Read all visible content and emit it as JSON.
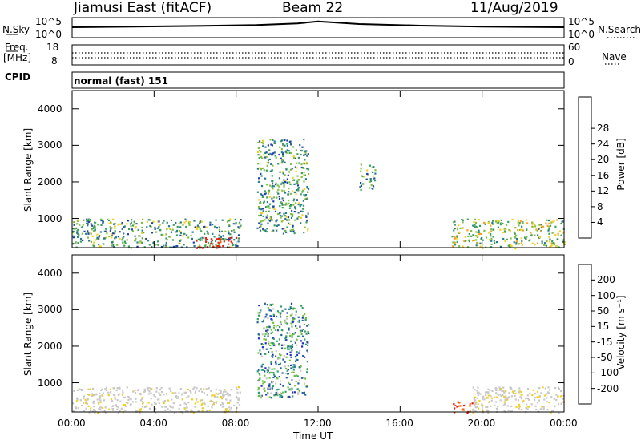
{
  "header": {
    "station": "Jiamusi East (fitACF)",
    "beam": "Beam 22",
    "date": "11/Aug/2019"
  },
  "strips": {
    "nsky_label": "N.Sky",
    "nsky_ticks": [
      "10^5",
      "10^0"
    ],
    "nsearch_label": "N.Search",
    "nsearch_ticks": [
      "10^5",
      "10^0"
    ],
    "freq_label_1": "Freq.",
    "freq_label_2": "[MHz]",
    "freq_ticks": [
      "18",
      "8"
    ],
    "nave_label": "Nave",
    "nave_ticks": [
      "60",
      "0"
    ],
    "cpid_label": "CPID",
    "cpid_value": "normal (fast) 151"
  },
  "axes": {
    "ylabel": "Slant Range [km]",
    "xlabel": "Time UT",
    "y_ticks": [
      "1000",
      "2000",
      "3000",
      "4000"
    ],
    "x_ticks": [
      "00:00",
      "04:00",
      "08:00",
      "12:00",
      "16:00",
      "20:00",
      "00:00"
    ]
  },
  "colorbars": {
    "power": {
      "label": "Power [dB]",
      "ticks": [
        "4",
        "8",
        "12",
        "16",
        "20",
        "24",
        "28"
      ],
      "colors": [
        "#1f1fff",
        "#2040a8",
        "#2a7a8a",
        "#3aa060",
        "#80c040",
        "#f0d020",
        "#f8a020",
        "#f86010",
        "#e82010"
      ]
    },
    "velocity": {
      "label": "Velocity [m s⁻¹]",
      "ticks": [
        "200",
        "100",
        "50",
        "15",
        "-15",
        "-50",
        "-100",
        "-200"
      ],
      "colors": [
        "#2030c0",
        "#2060a0",
        "#30a070",
        "#70c040",
        "#c8c8c8",
        "#f0d020",
        "#f8a020",
        "#f86010",
        "#e81010"
      ]
    }
  },
  "chart_data": [
    {
      "type": "line",
      "title": "N.Sky / N.Search",
      "x_range_hours": [
        0,
        24
      ],
      "ylim": [
        "10^0",
        "10^5"
      ],
      "series": [
        {
          "name": "N.Sky",
          "x": [
            0,
            3,
            6,
            9,
            11,
            12,
            14,
            17,
            20,
            24
          ],
          "values": [
            2.5,
            2.7,
            2.9,
            3.2,
            3.7,
            4.3,
            3.5,
            3.0,
            2.7,
            2.5
          ]
        }
      ]
    },
    {
      "type": "heatmap",
      "title": "Power [dB]",
      "xlabel": "Time UT",
      "ylabel": "Slant Range [km]",
      "x_range_hours": [
        0,
        24
      ],
      "ylim": [
        200,
        4500
      ],
      "scale": [
        4,
        28
      ],
      "regions": [
        {
          "t0": 0.0,
          "t1": 8.2,
          "r0": 200,
          "r1": 1000,
          "power_db": 14
        },
        {
          "t0": 6.0,
          "t1": 8.0,
          "r0": 200,
          "r1": 500,
          "power_db": 30
        },
        {
          "t0": 9.0,
          "t1": 11.5,
          "r0": 600,
          "r1": 3200,
          "power_db": 12
        },
        {
          "t0": 14.0,
          "t1": 14.8,
          "r0": 1800,
          "r1": 2500,
          "power_db": 14
        },
        {
          "t0": 18.5,
          "t1": 24.0,
          "r0": 200,
          "r1": 1000,
          "power_db": 16
        }
      ]
    },
    {
      "type": "heatmap",
      "title": "Velocity [m s⁻¹]",
      "xlabel": "Time UT",
      "ylabel": "Slant Range [km]",
      "x_range_hours": [
        0,
        24
      ],
      "ylim": [
        200,
        4500
      ],
      "scale": [
        -200,
        200
      ],
      "regions": [
        {
          "t0": 0.0,
          "t1": 8.2,
          "r0": 200,
          "r1": 900,
          "velocity": 0
        },
        {
          "t0": 9.0,
          "t1": 11.5,
          "r0": 600,
          "r1": 3200,
          "velocity": 60
        },
        {
          "t0": 18.5,
          "t1": 19.5,
          "r0": 200,
          "r1": 500,
          "velocity": -200
        },
        {
          "t0": 19.5,
          "t1": 24.0,
          "r0": 200,
          "r1": 900,
          "velocity": 0
        }
      ]
    }
  ]
}
